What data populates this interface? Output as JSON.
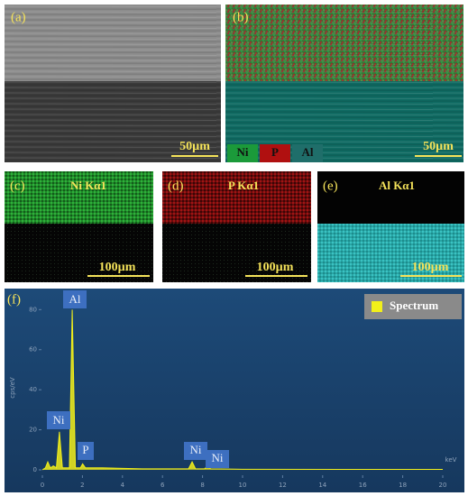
{
  "panels": [
    {
      "label": "(a)",
      "scale_bar": "50µm"
    },
    {
      "label": "(b)",
      "scale_bar": "50µm",
      "legend": [
        "Ni",
        "P",
        "Al"
      ]
    },
    {
      "label": "(c)",
      "title": "Ni Kα1",
      "scale_bar": "100µm"
    },
    {
      "label": "(d)",
      "title": "P Kα1",
      "scale_bar": "100µm"
    },
    {
      "label": "(e)",
      "title": "Al Kα1",
      "scale_bar": "100µm"
    },
    {
      "label": "(f)"
    }
  ],
  "chart_data": {
    "type": "line",
    "y_label": "cps/eV",
    "x_unit": "keV",
    "x": [
      0,
      0.15,
      0.27,
      0.4,
      0.55,
      0.7,
      0.85,
      1.0,
      1.35,
      1.49,
      1.65,
      1.9,
      2.01,
      2.15,
      3,
      5,
      7.3,
      7.48,
      7.65,
      8.1,
      8.26,
      8.4,
      10,
      15,
      20
    ],
    "series": [
      {
        "name": "Spectrum",
        "color": "#f2ef1a",
        "values": [
          0,
          1,
          4,
          1,
          2,
          1,
          19,
          1,
          1,
          80,
          1,
          1,
          3,
          1,
          1,
          0.5,
          0.5,
          4,
          0.5,
          0.5,
          2,
          0.5,
          0.3,
          0.2,
          0.2
        ]
      }
    ],
    "annotations": [
      "Al",
      "Ni",
      "P",
      "Ni",
      "Ni"
    ],
    "xlim": [
      0,
      20
    ],
    "xticks": [
      0,
      2,
      4,
      6,
      8,
      10,
      12,
      14,
      16,
      18,
      20
    ],
    "ylim": [
      0,
      86
    ],
    "yticks": [
      0,
      20,
      40,
      60,
      80
    ]
  }
}
